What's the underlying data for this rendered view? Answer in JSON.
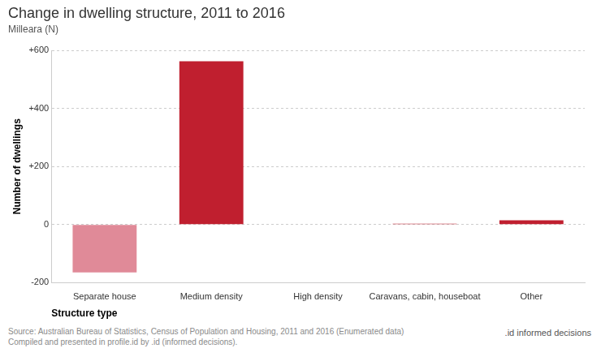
{
  "chart_data": {
    "type": "bar",
    "title": "Change in dwelling structure, 2011 to 2016",
    "subtitle": "Milleara (N)",
    "x_label": "Structure type",
    "y_label": "Number of dwellings",
    "categories": [
      "Separate house",
      "Medium density",
      "High density",
      "Caravans, cabin, houseboat",
      "Other"
    ],
    "values": [
      -165,
      562,
      0,
      3,
      15
    ],
    "colors": [
      "#e08a98",
      "#c01f2f",
      "#c01f2f",
      "#c01f2f",
      "#c01f2f"
    ],
    "ylim": [
      -200,
      600
    ],
    "yticks": [
      -200,
      0,
      {
        "value": 200,
        "label": "+200"
      },
      {
        "value": 400,
        "label": "+400"
      },
      {
        "value": 600,
        "label": "+600"
      }
    ],
    "grid": true,
    "annotations": [
      "Source: Australian Bureau of Statistics, Census of Population and Housing, 2011 and 2016 (Enumerated data)",
      "Compiled and presented in profile.id by .id (informed decisions).",
      ".id informed decisions"
    ]
  }
}
